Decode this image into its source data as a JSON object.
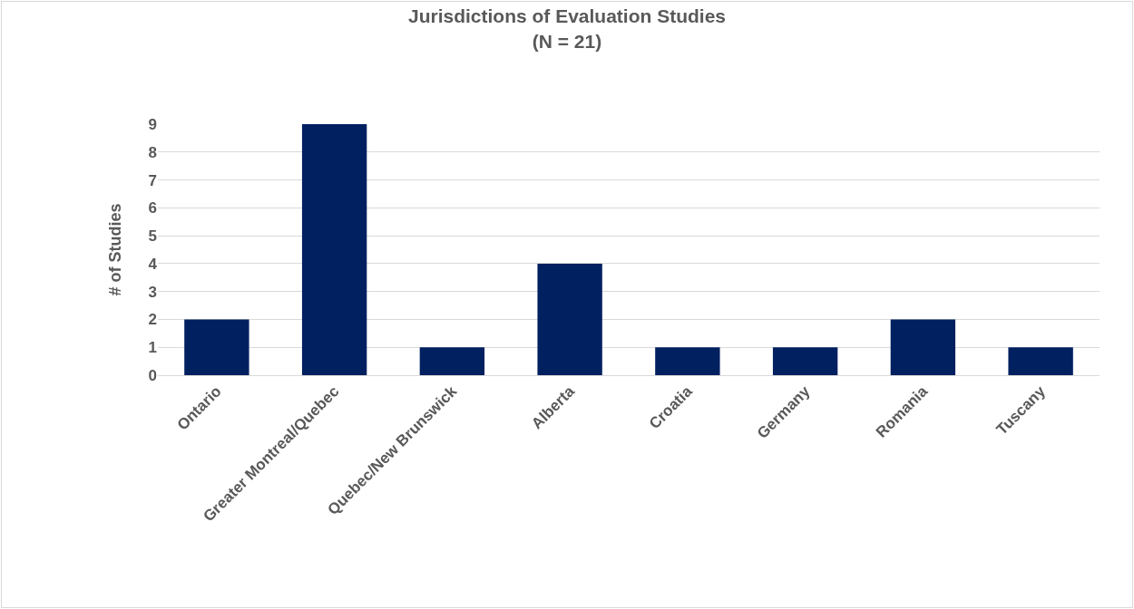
{
  "chart_data": {
    "type": "bar",
    "title": "Jurisdictions of Evaluation Studies",
    "subtitle": "(N = 21)",
    "ylabel": "# of Studies",
    "categories": [
      "Ontario",
      "Greater Montreal/Quebec",
      "Quebec/New Brunswick",
      "Alberta",
      "Croatia",
      "Germany",
      "Romania",
      "Tuscany"
    ],
    "values": [
      2,
      9,
      1,
      4,
      1,
      1,
      2,
      1
    ],
    "color": "#002060",
    "ylim": [
      0,
      9
    ],
    "yticks": [
      0,
      1,
      2,
      3,
      4,
      5,
      6,
      7,
      8,
      9
    ],
    "grid": "y",
    "legend": false
  }
}
